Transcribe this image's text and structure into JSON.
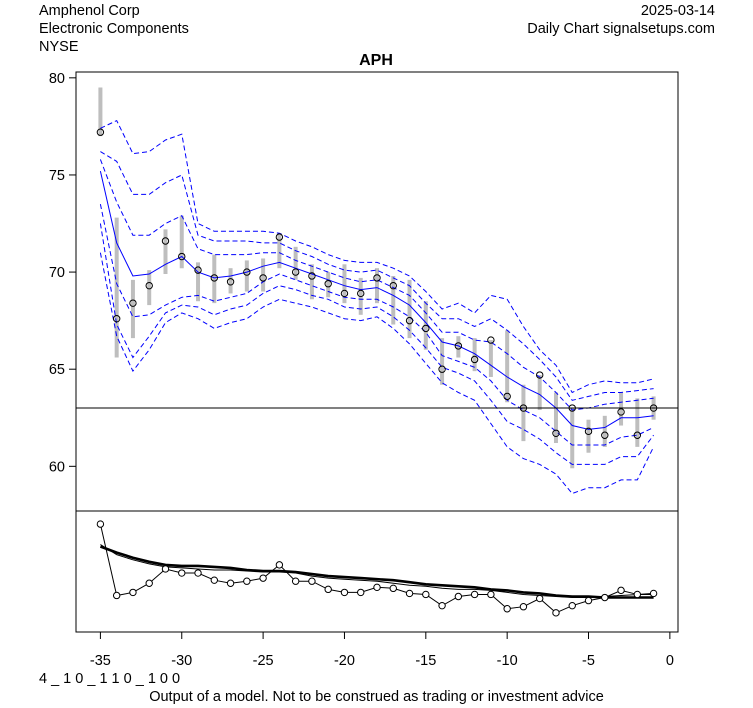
{
  "header": {
    "company": "Amphenol Corp",
    "sector": "Electronic Components",
    "exchange": "NYSE",
    "date": "2025-03-14",
    "source": "Daily Chart signalsetups.com"
  },
  "footer": {
    "code": "4 _ 1 0 _ 1 1 0 _ 1 0 0",
    "disclaimer": "Output of a model. Not to be construed as trading or investment advice"
  },
  "chart_data": [
    {
      "type": "line",
      "title": "APH",
      "xlabel": "",
      "ylabel": "",
      "xlim": [
        -36.5,
        0.5
      ],
      "ylim": [
        57.7,
        80.3
      ],
      "x_ticks": [
        -35,
        -30,
        -25,
        -20,
        -15,
        -10,
        -5,
        0
      ],
      "y_ticks": [
        60,
        65,
        70,
        75,
        80
      ],
      "grid": false,
      "reference_line": 63.0,
      "x": [
        -35,
        -34,
        -33,
        -32,
        -31,
        -30,
        -29,
        -28,
        -27,
        -26,
        -25,
        -24,
        -23,
        -22,
        -21,
        -20,
        -19,
        -18,
        -17,
        -16,
        -15,
        -14,
        -13,
        -12,
        -11,
        -10,
        -9,
        -8,
        -7,
        -6,
        -5,
        -4,
        -3,
        -2,
        -1
      ],
      "series": [
        {
          "name": "close",
          "style": "circles",
          "color": "#000000",
          "values": [
            77.2,
            67.6,
            68.4,
            69.3,
            71.6,
            70.8,
            70.1,
            69.7,
            69.5,
            70.0,
            69.7,
            71.8,
            70.0,
            69.8,
            69.4,
            68.9,
            68.9,
            69.7,
            69.3,
            67.5,
            67.1,
            65.0,
            66.2,
            65.5,
            66.5,
            63.6,
            63.0,
            64.7,
            61.7,
            63.0,
            61.8,
            61.6,
            62.8,
            61.6,
            63.0
          ]
        },
        {
          "name": "high",
          "style": "range-bar",
          "color": "#bebebe",
          "values": [
            79.5,
            72.8,
            69.6,
            70.1,
            72.2,
            72.9,
            70.5,
            70.9,
            70.2,
            70.6,
            70.7,
            72.0,
            71.3,
            70.4,
            70.0,
            70.4,
            69.7,
            70.2,
            69.8,
            69.6,
            68.5,
            66.6,
            66.7,
            66.6,
            66.5,
            67.0,
            64.2,
            64.7,
            63.8,
            63.0,
            62.4,
            62.6,
            63.8,
            63.5,
            63.6
          ]
        },
        {
          "name": "low",
          "style": "range-bar",
          "color": "#bebebe",
          "values": [
            77.0,
            65.6,
            66.6,
            68.3,
            69.9,
            70.2,
            68.5,
            68.4,
            68.9,
            69.0,
            69.0,
            70.2,
            69.6,
            68.6,
            68.7,
            68.4,
            67.8,
            68.4,
            67.3,
            66.6,
            66.0,
            64.2,
            65.6,
            64.9,
            64.6,
            63.3,
            61.3,
            62.9,
            61.2,
            59.9,
            60.7,
            61.0,
            62.1,
            61.0,
            62.4
          ]
        },
        {
          "name": "model-center",
          "style": "solid",
          "color": "#0000ff",
          "values": [
            75.2,
            71.5,
            69.8,
            69.9,
            70.4,
            70.8,
            70.0,
            69.7,
            69.8,
            70.0,
            70.3,
            70.5,
            70.2,
            69.9,
            69.6,
            69.3,
            69.1,
            69.2,
            68.8,
            68.3,
            67.4,
            66.4,
            66.2,
            65.8,
            65.2,
            64.6,
            64.1,
            63.7,
            63.0,
            62.1,
            61.9,
            62.0,
            62.5,
            62.5,
            62.6
          ]
        },
        {
          "name": "band-upper-3",
          "style": "dashed",
          "color": "#0000ff",
          "values": [
            77.4,
            77.8,
            76.1,
            76.2,
            76.8,
            77.1,
            72.5,
            72.1,
            72.1,
            72.1,
            72.1,
            72.0,
            71.6,
            71.3,
            70.9,
            70.6,
            70.5,
            70.5,
            70.2,
            69.8,
            69.0,
            68.1,
            68.4,
            67.9,
            68.8,
            68.6,
            67.2,
            66.0,
            65.2,
            63.8,
            64.2,
            64.4,
            64.3,
            64.3,
            64.5
          ]
        },
        {
          "name": "band-upper-2",
          "style": "dashed",
          "color": "#0000ff",
          "values": [
            76.2,
            75.7,
            74.0,
            74.0,
            74.6,
            75.0,
            71.9,
            71.6,
            71.6,
            71.6,
            71.5,
            71.5,
            71.1,
            70.8,
            70.4,
            70.1,
            70.0,
            70.1,
            69.7,
            69.3,
            68.4,
            67.6,
            67.6,
            67.2,
            67.6,
            67.0,
            66.3,
            65.5,
            64.6,
            63.4,
            63.6,
            63.8,
            63.8,
            63.9,
            64.0
          ]
        },
        {
          "name": "band-upper-1",
          "style": "dashed",
          "color": "#0000ff",
          "values": [
            75.8,
            73.6,
            71.9,
            71.9,
            72.5,
            72.9,
            71.2,
            70.9,
            70.9,
            70.9,
            71.0,
            71.0,
            70.6,
            70.3,
            70.0,
            69.7,
            69.5,
            69.6,
            69.2,
            68.8,
            67.9,
            66.9,
            66.9,
            66.5,
            66.4,
            65.8,
            65.1,
            64.6,
            63.8,
            62.9,
            63.0,
            63.2,
            63.3,
            63.4,
            63.5
          ]
        },
        {
          "name": "band-lower-1",
          "style": "dashed",
          "color": "#0000ff",
          "values": [
            73.5,
            69.4,
            67.7,
            67.8,
            68.3,
            68.7,
            68.8,
            68.5,
            68.7,
            68.9,
            69.5,
            69.9,
            69.6,
            69.3,
            69.0,
            68.7,
            68.6,
            68.6,
            68.2,
            67.7,
            66.9,
            65.7,
            65.4,
            65.1,
            64.4,
            63.4,
            62.9,
            62.5,
            61.8,
            61.1,
            61.1,
            61.1,
            61.5,
            61.6,
            62.0
          ]
        },
        {
          "name": "band-lower-2",
          "style": "dashed",
          "color": "#0000ff",
          "values": [
            72.5,
            67.3,
            65.6,
            66.7,
            67.9,
            68.3,
            68.2,
            67.8,
            68.1,
            68.3,
            68.9,
            69.3,
            69.1,
            68.8,
            68.6,
            68.2,
            68.1,
            68.2,
            67.7,
            67.0,
            66.1,
            65.1,
            64.8,
            64.4,
            63.4,
            62.3,
            61.9,
            61.4,
            60.7,
            60.1,
            60.1,
            60.1,
            60.5,
            60.5,
            61.6
          ]
        },
        {
          "name": "band-lower-3",
          "style": "dashed",
          "color": "#0000ff",
          "values": [
            71.0,
            66.7,
            64.9,
            66.0,
            67.4,
            67.9,
            67.6,
            67.1,
            67.4,
            67.6,
            68.2,
            68.6,
            68.4,
            68.2,
            67.9,
            67.6,
            67.5,
            67.7,
            67.1,
            66.3,
            65.3,
            64.3,
            63.8,
            63.4,
            62.2,
            61.0,
            60.4,
            60.1,
            59.6,
            58.6,
            58.9,
            58.9,
            59.3,
            59.3,
            61.0
          ]
        }
      ]
    },
    {
      "type": "line",
      "title": "",
      "x": [
        -35,
        -34,
        -33,
        -32,
        -31,
        -30,
        -29,
        -28,
        -27,
        -26,
        -25,
        -24,
        -23,
        -22,
        -21,
        -20,
        -19,
        -18,
        -17,
        -16,
        -15,
        -14,
        -13,
        -12,
        -11,
        -10,
        -9,
        -8,
        -7,
        -6,
        -5,
        -4,
        -3,
        -2,
        -1
      ],
      "ylim": [
        0,
        1
      ],
      "y_ticks": [],
      "series": [
        {
          "name": "oscillator",
          "style": "line-circles",
          "color": "#000000",
          "values": [
            0.96,
            0.26,
            0.29,
            0.38,
            0.52,
            0.48,
            0.48,
            0.41,
            0.38,
            0.4,
            0.43,
            0.56,
            0.4,
            0.4,
            0.32,
            0.29,
            0.29,
            0.34,
            0.33,
            0.28,
            0.27,
            0.16,
            0.25,
            0.27,
            0.27,
            0.13,
            0.15,
            0.23,
            0.09,
            0.16,
            0.21,
            0.24,
            0.31,
            0.27,
            0.28
          ]
        },
        {
          "name": "average-thick",
          "style": "thick",
          "color": "#000000",
          "values": [
            0.74,
            0.68,
            0.63,
            0.59,
            0.56,
            0.55,
            0.55,
            0.54,
            0.53,
            0.51,
            0.5,
            0.5,
            0.49,
            0.47,
            0.45,
            0.44,
            0.43,
            0.42,
            0.41,
            0.39,
            0.37,
            0.36,
            0.35,
            0.34,
            0.32,
            0.31,
            0.29,
            0.28,
            0.26,
            0.25,
            0.25,
            0.24,
            0.24,
            0.24,
            0.24
          ]
        },
        {
          "name": "average-thin",
          "style": "thin",
          "color": "#000000",
          "values": [
            0.76,
            0.66,
            0.61,
            0.57,
            0.54,
            0.53,
            0.52,
            0.51,
            0.51,
            0.5,
            0.49,
            0.49,
            0.48,
            0.45,
            0.43,
            0.42,
            0.41,
            0.4,
            0.38,
            0.36,
            0.35,
            0.33,
            0.32,
            0.32,
            0.31,
            0.29,
            0.27,
            0.26,
            0.25,
            0.24,
            0.24,
            0.25,
            0.26,
            0.27,
            0.27
          ]
        }
      ]
    }
  ]
}
